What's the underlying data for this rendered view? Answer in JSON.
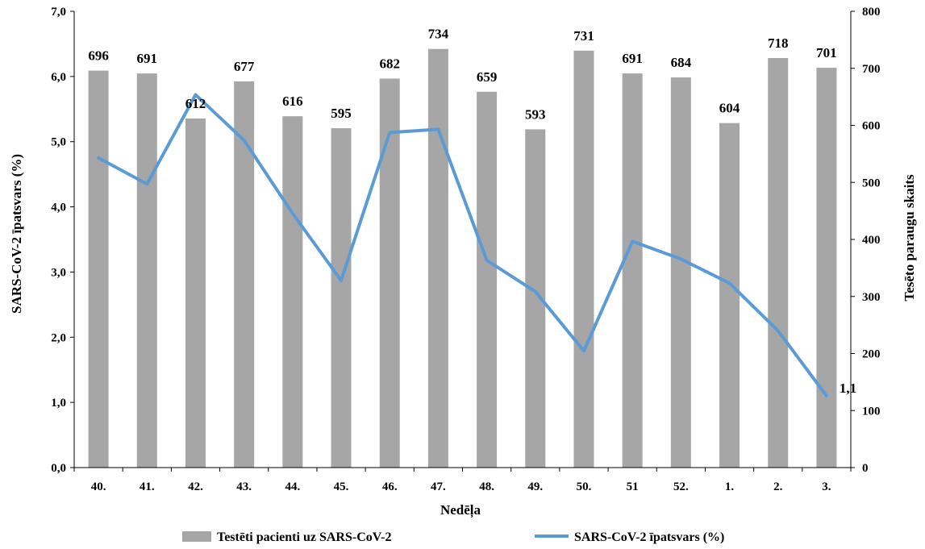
{
  "chart_data": {
    "type": "bar+line",
    "categories": [
      "40.",
      "41.",
      "42.",
      "43.",
      "44.",
      "45.",
      "46.",
      "47.",
      "48.",
      "49.",
      "50.",
      "51",
      "52.",
      "1.",
      "2.",
      "3."
    ],
    "series": [
      {
        "name": "Testēti pacienti uz SARS-CoV-2",
        "type": "bar",
        "axis": "right",
        "color": "#a6a6a6",
        "values": [
          696,
          691,
          612,
          677,
          616,
          595,
          682,
          734,
          659,
          593,
          731,
          691,
          684,
          604,
          718,
          701
        ],
        "labels": [
          "696",
          "691",
          "612",
          "677",
          "616",
          "595",
          "682",
          "734",
          "659",
          "593",
          "731",
          "691",
          "684",
          "604",
          "718",
          "701"
        ]
      },
      {
        "name": "SARS-CoV-2 īpatsvars (%)",
        "type": "line",
        "axis": "left",
        "color": "#5b9bd5",
        "values": [
          4.75,
          4.35,
          5.72,
          5.02,
          3.9,
          2.87,
          5.14,
          5.19,
          3.18,
          2.7,
          1.79,
          3.47,
          3.2,
          2.83,
          2.1,
          1.1
        ],
        "end_label": "1,1"
      }
    ],
    "xlabel": "Nedēļa",
    "ylabel_left": "SARS-CoV-2 īpatsvars (%)",
    "ylabel_right": "Tesēto paraugu skaits",
    "ylim_left": [
      0,
      7
    ],
    "ylim_right": [
      0,
      800
    ],
    "left_ticks": [
      "0,0",
      "1,0",
      "2,0",
      "3,0",
      "4,0",
      "5,0",
      "6,0",
      "7,0"
    ],
    "right_ticks": [
      "0",
      "100",
      "200",
      "300",
      "400",
      "500",
      "600",
      "700",
      "800"
    ],
    "grid": false,
    "legend_position": "bottom"
  }
}
